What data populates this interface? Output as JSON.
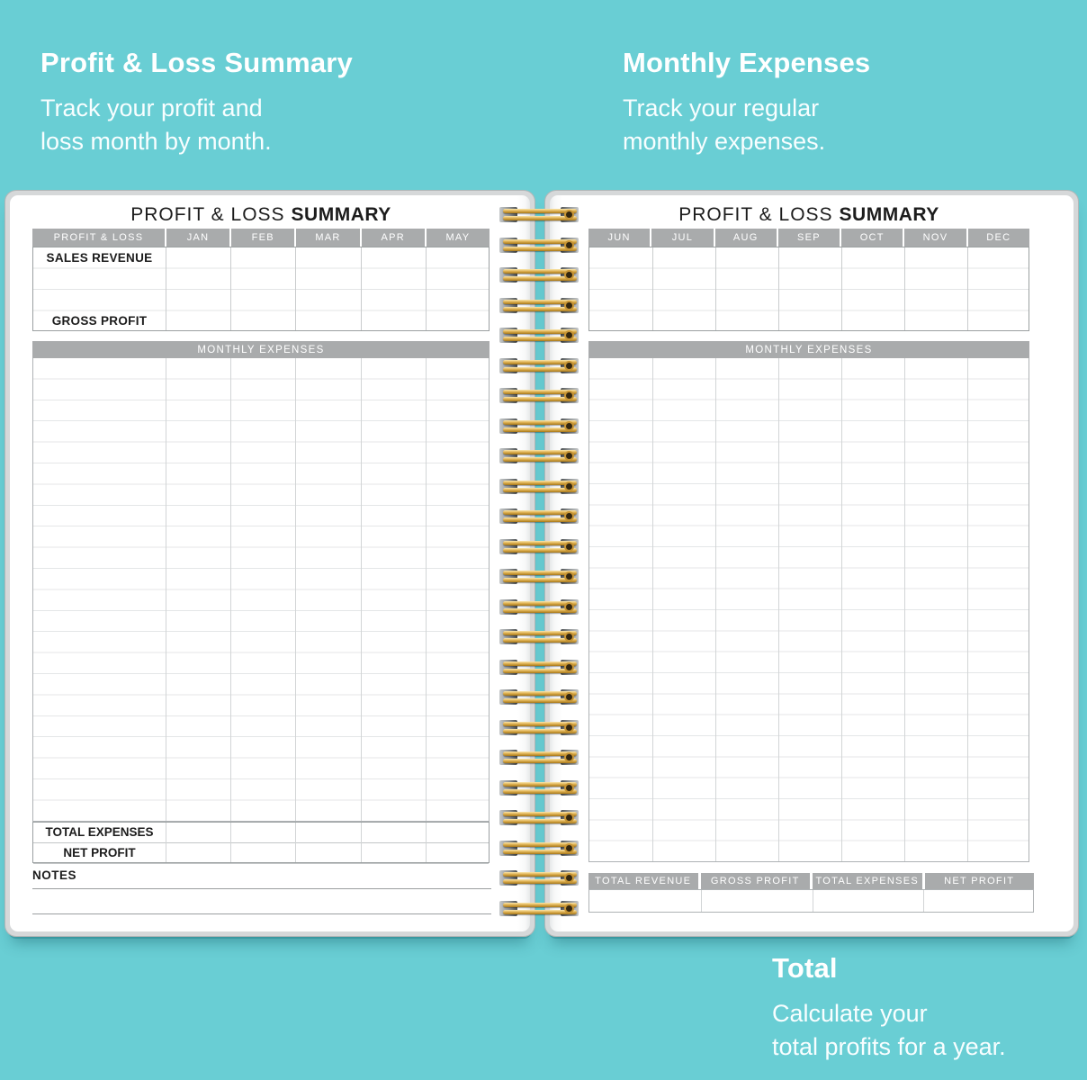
{
  "hero": {
    "top_left": {
      "title": "Profit & Loss Summary",
      "lines": [
        "Track your profit and",
        "loss month by month."
      ]
    },
    "top_right": {
      "title": "Monthly Expenses",
      "lines": [
        "Track your regular",
        "monthly expenses."
      ]
    },
    "bottom_right": {
      "title": "Total",
      "lines": [
        "Calculate your",
        "total profits for a year."
      ]
    }
  },
  "left_page": {
    "title": {
      "regular": "PROFIT & LOSS",
      "bold": "SUMMARY"
    },
    "header_cells": [
      "PROFIT & LOSS",
      "JAN",
      "FEB",
      "MAR",
      "APR",
      "MAY"
    ],
    "row_labels": {
      "sales_revenue": "SALES REVENUE",
      "gross_profit": "GROSS PROFIT"
    },
    "expenses_band": "MONTHLY EXPENSES",
    "blank_expense_rows": 22,
    "footer_labels": [
      "TOTAL EXPENSES",
      "NET PROFIT"
    ],
    "notes": {
      "label": "NOTES",
      "line_count": 2
    }
  },
  "right_page": {
    "title": {
      "regular": "PROFIT & LOSS",
      "bold": "SUMMARY"
    },
    "header_cells": [
      "JUN",
      "JUL",
      "AUG",
      "SEP",
      "OCT",
      "NOV",
      "DEC"
    ],
    "blank_top_rows": 4,
    "expenses_band": "MONTHLY EXPENSES",
    "blank_expense_rows": 24,
    "totals_header_cells": [
      "TOTAL REVENUE",
      "GROSS PROFIT",
      "TOTAL EXPENSES",
      "NET PROFIT"
    ]
  },
  "binding": {
    "coil_count": 24
  },
  "colors": {
    "background_teal": "#69ced4",
    "header_band_gray": "#a9abac",
    "hero_text_white": "#ffffff",
    "label_text_black": "#1c1c1c",
    "table_border_gray": "#9ba0a1",
    "row_line_gray": "#e4e6e7",
    "wire_gold": "#e0b356",
    "page_rim_gray": "#d6d8d9"
  }
}
